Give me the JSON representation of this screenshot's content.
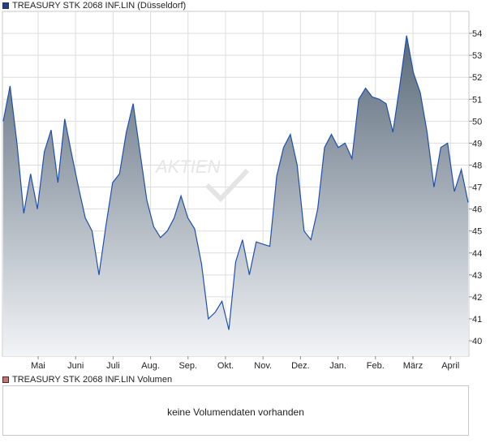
{
  "price_legend": {
    "label": "TREASURY STK 2068 INF.LIN (Düsseldorf)",
    "color": "#1f3f8f"
  },
  "volume_legend": {
    "label": "TREASURY STK 2068 INF.LIN Volumen",
    "color": "#d07070"
  },
  "volume_panel": {
    "message": "keine Volumendaten vorhanden"
  },
  "watermark": {
    "text": "AKTIEN"
  },
  "colors": {
    "line": "#1f4fb0",
    "fill_top": "#5a6a7a",
    "fill_bottom": "#f2f4f7",
    "grid": "#dddddd",
    "border": "#c8c8c8"
  },
  "chart_data": {
    "type": "area",
    "title": "",
    "xlabel": "",
    "ylabel": "",
    "ylim": [
      39.3,
      55.0
    ],
    "yticks": [
      40,
      41,
      42,
      43,
      44,
      45,
      46,
      47,
      48,
      49,
      50,
      51,
      52,
      53,
      54
    ],
    "y_axis_position": "right",
    "grid": true,
    "months": [
      "Mai",
      "Juni",
      "Juli",
      "Aug.",
      "Sep.",
      "Okt.",
      "Nov.",
      "Dez.",
      "Jan.",
      "Feb.",
      "März",
      "April"
    ],
    "series": [
      {
        "values": [
          50.0,
          51.6,
          49.0,
          45.8,
          47.6,
          46.0,
          48.6,
          49.6,
          47.2,
          50.1,
          48.5,
          47.0,
          45.6,
          45.0,
          43.0,
          45.2,
          47.2,
          47.6,
          49.5,
          50.8,
          48.6,
          46.4,
          45.2,
          44.7,
          45.0,
          45.6,
          46.6,
          45.6,
          45.1,
          43.5,
          41.0,
          41.3,
          41.8,
          40.5,
          43.6,
          44.6,
          43.0,
          44.5,
          44.4,
          44.3,
          47.5,
          48.8,
          49.4,
          48.0,
          45.0,
          44.6,
          46.0,
          48.8,
          49.4,
          48.8,
          49.0,
          48.3,
          51.0,
          51.5,
          51.1,
          51.0,
          50.8,
          49.5,
          51.6,
          53.9,
          52.2,
          51.3,
          49.5,
          47.0,
          48.8,
          49.0,
          46.8,
          47.8,
          46.3
        ]
      }
    ]
  }
}
